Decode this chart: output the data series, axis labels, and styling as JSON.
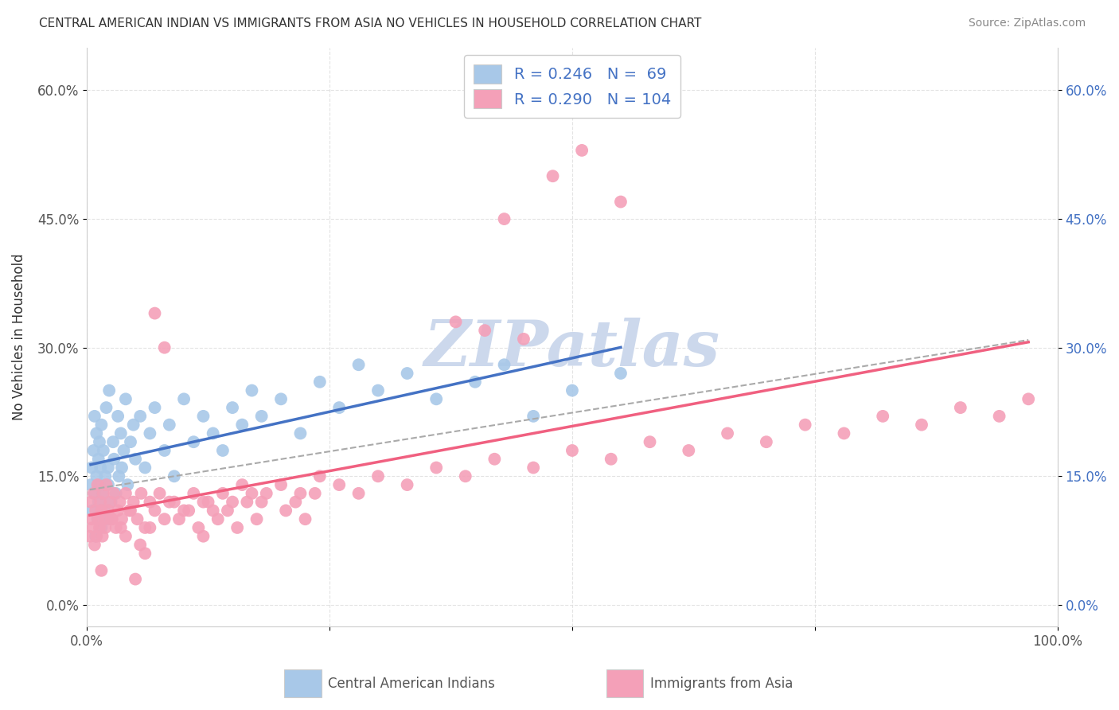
{
  "title": "CENTRAL AMERICAN INDIAN VS IMMIGRANTS FROM ASIA NO VEHICLES IN HOUSEHOLD CORRELATION CHART",
  "source": "Source: ZipAtlas.com",
  "ylabel": "No Vehicles in Household",
  "xlim": [
    0,
    1.0
  ],
  "ylim": [
    -0.025,
    0.65
  ],
  "xticks": [
    0,
    0.25,
    0.5,
    0.75,
    1.0
  ],
  "xticklabels": [
    "0.0%",
    "",
    "",
    "",
    "100.0%"
  ],
  "yticks": [
    0,
    0.15,
    0.3,
    0.45,
    0.6
  ],
  "yticklabels": [
    "0.0%",
    "15.0%",
    "30.0%",
    "45.0%",
    "60.0%"
  ],
  "R_blue": 0.246,
  "N_blue": 69,
  "R_pink": 0.29,
  "N_pink": 104,
  "blue_color": "#a8c8e8",
  "pink_color": "#f4a0b8",
  "blue_line_color": "#4472c4",
  "pink_line_color": "#f06080",
  "dash_line_color": "#aaaaaa",
  "watermark_color": "#ccd8ec",
  "blue_scatter_x": [
    0.004,
    0.005,
    0.006,
    0.007,
    0.008,
    0.008,
    0.009,
    0.01,
    0.01,
    0.011,
    0.012,
    0.012,
    0.013,
    0.013,
    0.014,
    0.015,
    0.015,
    0.016,
    0.017,
    0.018,
    0.019,
    0.02,
    0.021,
    0.022,
    0.022,
    0.023,
    0.025,
    0.027,
    0.028,
    0.03,
    0.032,
    0.033,
    0.035,
    0.036,
    0.038,
    0.04,
    0.042,
    0.045,
    0.048,
    0.05,
    0.055,
    0.06,
    0.065,
    0.07,
    0.08,
    0.085,
    0.09,
    0.1,
    0.11,
    0.12,
    0.13,
    0.14,
    0.15,
    0.16,
    0.17,
    0.18,
    0.2,
    0.22,
    0.24,
    0.26,
    0.28,
    0.3,
    0.33,
    0.36,
    0.4,
    0.43,
    0.46,
    0.5,
    0.55
  ],
  "blue_scatter_y": [
    0.14,
    0.16,
    0.11,
    0.18,
    0.22,
    0.13,
    0.08,
    0.2,
    0.15,
    0.1,
    0.17,
    0.12,
    0.19,
    0.14,
    0.16,
    0.09,
    0.21,
    0.13,
    0.18,
    0.11,
    0.15,
    0.23,
    0.1,
    0.16,
    0.14,
    0.25,
    0.12,
    0.19,
    0.17,
    0.13,
    0.22,
    0.15,
    0.2,
    0.16,
    0.18,
    0.24,
    0.14,
    0.19,
    0.21,
    0.17,
    0.22,
    0.16,
    0.2,
    0.23,
    0.18,
    0.21,
    0.15,
    0.24,
    0.19,
    0.22,
    0.2,
    0.18,
    0.23,
    0.21,
    0.25,
    0.22,
    0.24,
    0.2,
    0.26,
    0.23,
    0.28,
    0.25,
    0.27,
    0.24,
    0.26,
    0.28,
    0.22,
    0.25,
    0.27
  ],
  "pink_scatter_x": [
    0.003,
    0.004,
    0.005,
    0.006,
    0.007,
    0.008,
    0.009,
    0.01,
    0.011,
    0.012,
    0.013,
    0.014,
    0.015,
    0.016,
    0.017,
    0.018,
    0.019,
    0.02,
    0.022,
    0.024,
    0.026,
    0.028,
    0.03,
    0.032,
    0.034,
    0.036,
    0.04,
    0.044,
    0.048,
    0.052,
    0.056,
    0.06,
    0.065,
    0.07,
    0.075,
    0.08,
    0.09,
    0.1,
    0.11,
    0.12,
    0.13,
    0.14,
    0.15,
    0.16,
    0.17,
    0.18,
    0.2,
    0.22,
    0.24,
    0.26,
    0.28,
    0.3,
    0.33,
    0.36,
    0.39,
    0.42,
    0.46,
    0.5,
    0.54,
    0.58,
    0.62,
    0.66,
    0.7,
    0.74,
    0.78,
    0.82,
    0.86,
    0.9,
    0.94,
    0.97,
    0.38,
    0.41,
    0.45,
    0.48,
    0.51,
    0.43,
    0.55,
    0.07,
    0.08,
    0.04,
    0.05,
    0.12,
    0.06,
    0.035,
    0.055,
    0.025,
    0.015,
    0.045,
    0.065,
    0.085,
    0.095,
    0.105,
    0.115,
    0.125,
    0.135,
    0.145,
    0.155,
    0.165,
    0.175,
    0.185,
    0.205,
    0.215,
    0.225,
    0.235
  ],
  "pink_scatter_y": [
    0.08,
    0.12,
    0.1,
    0.09,
    0.13,
    0.07,
    0.11,
    0.08,
    0.14,
    0.1,
    0.09,
    0.12,
    0.11,
    0.08,
    0.13,
    0.1,
    0.09,
    0.14,
    0.11,
    0.12,
    0.1,
    0.13,
    0.09,
    0.11,
    0.12,
    0.1,
    0.13,
    0.11,
    0.12,
    0.1,
    0.13,
    0.09,
    0.12,
    0.11,
    0.13,
    0.1,
    0.12,
    0.11,
    0.13,
    0.12,
    0.11,
    0.13,
    0.12,
    0.14,
    0.13,
    0.12,
    0.14,
    0.13,
    0.15,
    0.14,
    0.13,
    0.15,
    0.14,
    0.16,
    0.15,
    0.17,
    0.16,
    0.18,
    0.17,
    0.19,
    0.18,
    0.2,
    0.19,
    0.21,
    0.2,
    0.22,
    0.21,
    0.23,
    0.22,
    0.24,
    0.33,
    0.32,
    0.31,
    0.5,
    0.53,
    0.45,
    0.47,
    0.34,
    0.3,
    0.08,
    0.03,
    0.08,
    0.06,
    0.09,
    0.07,
    0.1,
    0.04,
    0.11,
    0.09,
    0.12,
    0.1,
    0.11,
    0.09,
    0.12,
    0.1,
    0.11,
    0.09,
    0.12,
    0.1,
    0.13,
    0.11,
    0.12,
    0.1,
    0.13
  ]
}
